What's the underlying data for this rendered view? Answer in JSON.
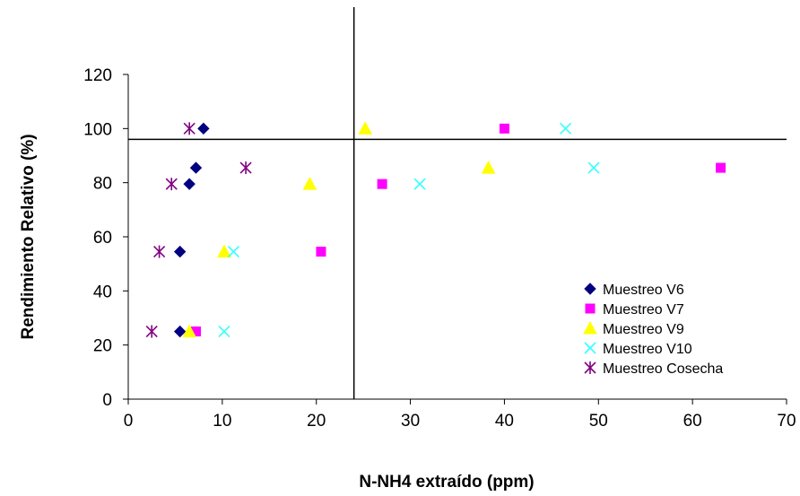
{
  "chart_data": {
    "type": "scatter",
    "xlabel": "N-NH4 extraído (ppm)",
    "ylabel": "Rendimiento Relativo (%)",
    "xlim": [
      0,
      70
    ],
    "ylim": [
      0,
      120
    ],
    "x_ticks": [
      0,
      10,
      20,
      30,
      40,
      50,
      60,
      70
    ],
    "y_ticks": [
      0,
      20,
      40,
      60,
      80,
      100,
      120
    ],
    "grid": false,
    "legend_position": "bottom-right",
    "reference_lines": {
      "vertical_x": 24,
      "horizontal_y": 96
    },
    "series": [
      {
        "name": "Muestreo V6",
        "marker": "diamond",
        "color": "#000080",
        "points": [
          [
            5.5,
            25
          ],
          [
            5.5,
            54.5
          ],
          [
            6.5,
            79.5
          ],
          [
            7.2,
            85.5
          ],
          [
            8.0,
            100
          ]
        ]
      },
      {
        "name": "Muestreo V7",
        "marker": "square",
        "color": "#FF00FF",
        "points": [
          [
            7.2,
            25
          ],
          [
            20.5,
            54.5
          ],
          [
            27.0,
            79.5
          ],
          [
            63.0,
            85.5
          ],
          [
            40.0,
            100
          ]
        ]
      },
      {
        "name": "Muestreo V9",
        "marker": "triangle",
        "color": "#FFFF00",
        "points": [
          [
            6.5,
            25
          ],
          [
            10.2,
            54.5
          ],
          [
            19.3,
            79.5
          ],
          [
            38.3,
            85.5
          ],
          [
            25.2,
            100
          ]
        ]
      },
      {
        "name": "Muestreo V10",
        "marker": "x",
        "color": "#33FFFF",
        "points": [
          [
            10.2,
            25
          ],
          [
            11.2,
            54.5
          ],
          [
            31.0,
            79.5
          ],
          [
            49.5,
            85.5
          ],
          [
            46.5,
            100
          ]
        ]
      },
      {
        "name": "Muestreo Cosecha",
        "marker": "asterisk",
        "color": "#800080",
        "points": [
          [
            2.5,
            25
          ],
          [
            3.3,
            54.5
          ],
          [
            4.6,
            79.5
          ],
          [
            12.5,
            85.5
          ],
          [
            6.5,
            100
          ]
        ]
      }
    ]
  }
}
